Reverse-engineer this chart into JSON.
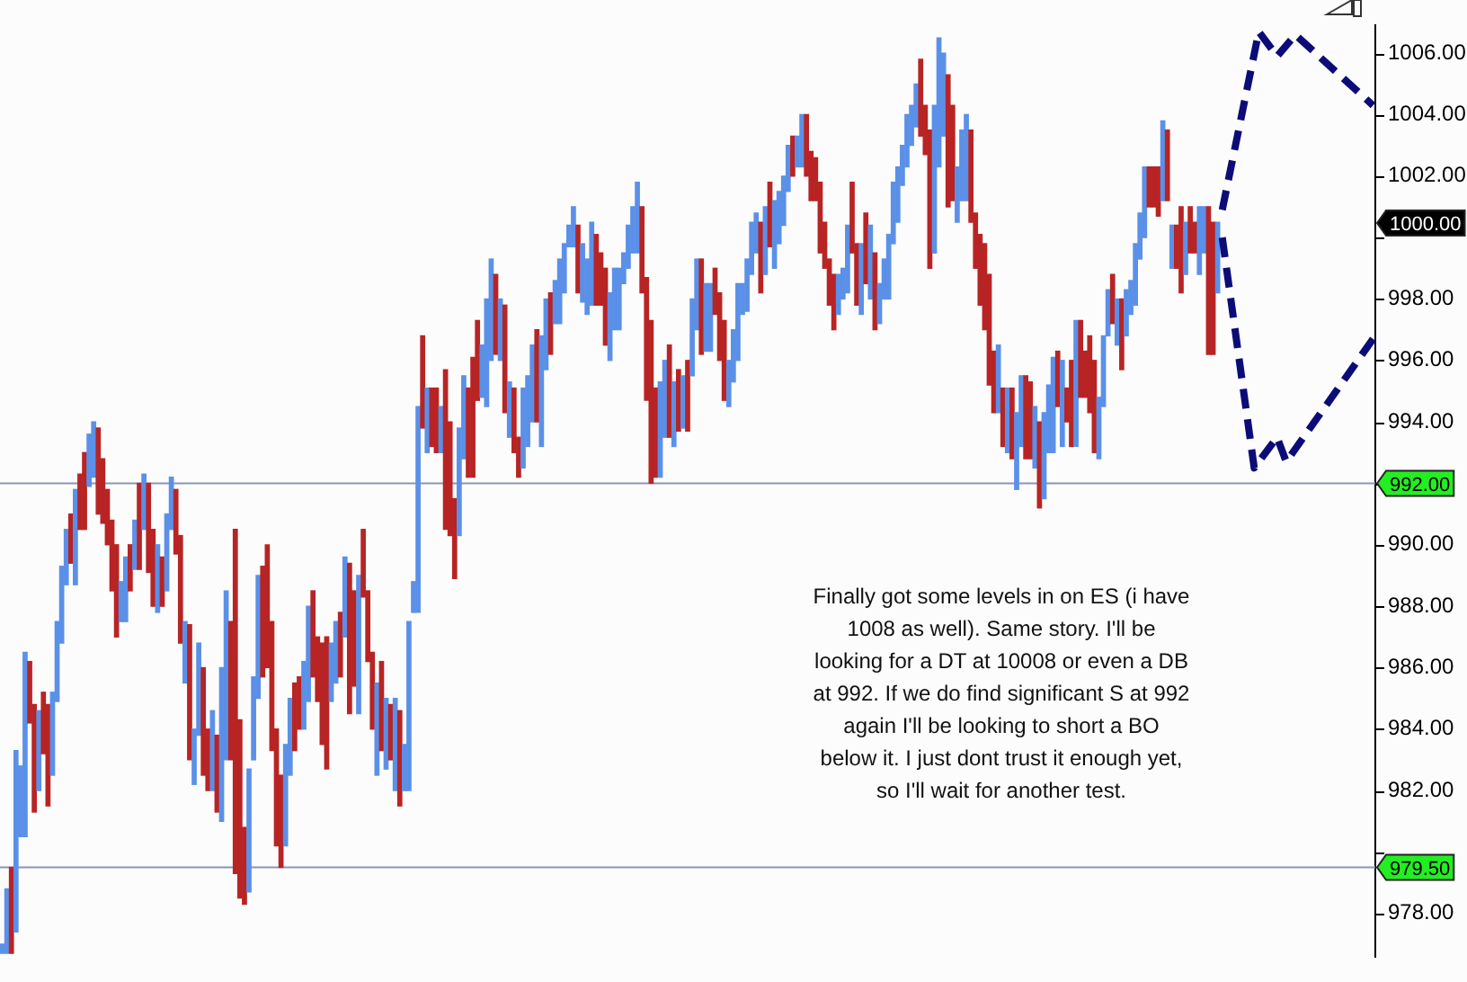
{
  "chart_data": {
    "type": "bar",
    "categories": [
      null,
      null,
      null,
      null,
      null,
      null,
      null,
      null,
      null,
      null,
      null,
      null,
      null,
      null,
      null,
      null,
      null,
      null,
      null,
      null,
      null,
      null,
      null,
      null,
      null,
      null,
      null,
      null,
      null,
      null,
      null,
      null,
      null,
      null,
      null,
      null,
      null,
      null,
      null,
      null,
      null,
      null,
      null,
      null,
      null,
      null,
      null,
      null,
      null,
      null,
      null,
      null,
      null,
      null,
      null,
      null,
      null,
      null,
      null,
      null,
      null,
      null,
      null,
      null,
      null,
      null,
      null,
      null,
      null,
      null,
      null,
      null,
      null,
      null,
      null,
      null,
      null,
      null,
      null,
      null,
      null,
      null,
      null,
      null,
      null,
      null,
      null,
      null,
      null,
      null,
      null,
      null,
      null,
      null,
      null,
      null,
      null,
      null,
      null,
      null,
      null,
      null,
      null,
      null,
      null,
      null,
      null,
      null,
      null,
      null,
      null,
      null,
      null,
      null,
      null,
      null,
      null,
      null,
      null,
      null,
      null,
      null,
      null,
      null,
      null,
      null,
      null,
      null,
      null,
      null,
      null,
      null,
      null,
      null,
      null,
      null,
      null,
      null,
      null,
      null,
      null,
      null,
      null,
      null,
      null,
      null,
      null,
      null,
      null,
      null,
      null,
      null,
      null,
      null,
      null,
      null,
      null,
      null,
      null,
      null,
      null,
      null,
      null,
      null,
      null,
      null,
      null,
      null,
      null,
      null,
      null,
      null,
      null,
      null,
      null,
      null,
      null,
      null,
      null,
      null,
      null,
      null,
      null,
      null,
      null,
      null,
      null,
      null,
      null,
      null,
      null,
      null,
      null,
      null,
      null,
      null,
      null,
      null,
      null,
      null,
      null,
      null,
      null,
      null,
      null,
      null,
      null,
      null,
      null,
      null,
      null,
      null,
      null,
      null,
      null,
      null,
      null,
      null,
      null,
      null,
      null,
      null,
      null,
      null,
      null,
      null,
      null,
      null,
      null,
      null,
      null,
      null,
      null,
      null,
      null,
      null,
      null,
      null,
      null,
      null,
      null,
      null,
      null,
      null,
      null,
      null,
      null,
      null,
      null,
      null,
      null,
      null,
      null,
      null,
      null,
      null,
      null,
      null,
      null,
      null,
      null,
      null,
      null,
      null,
      null,
      null,
      null,
      null,
      null,
      null,
      null,
      null,
      null,
      null,
      null,
      null,
      null,
      null,
      null,
      null,
      null,
      null,
      null,
      null,
      null,
      null,
      null,
      null,
      null,
      null,
      null,
      null,
      null,
      null,
      null,
      null,
      null,
      null,
      null,
      null,
      null
    ],
    "series": [
      {
        "values": [
          0.3,
          2.1,
          2.8,
          5.9,
          2.3,
          6,
          2,
          3.5,
          2.6,
          2,
          3.3,
          2.7,
          2.6,
          2.5,
          1.8,
          1.6,
          3.1,
          1.8,
          2.5,
          1.7,
          1.8,
          2.8,
          2.1,
          1.8,
          2.3,
          3,
          1.3,
          2.1,
          1.5,
          1.6,
          2.8,
          1.8,
          2.9,
          2.5,
          2.2,
          1.6,
          2.5,
          1.7,
          2.1,
          3.5,
          2,
          4.4,
          1.8,
          3,
          3.5,
          2,
          2.6,
          2.5,
          5,
          5.5,
          4.5,
          11.2,
          5.8,
          2.5,
          4,
          2.7,
          4,
          3.6,
          4,
          4.2,
          3.8,
          3,
          3.3,
          2.5,
          2.2,
          1.7,
          2.2,
          3.1,
          2.8,
          2.1,
          3.3,
          4.3,
          1.9,
          2,
          2.1,
          2.6,
          4.9,
          3.1,
          4.5,
          2.2,
          2.3,
          2.5,
          3,
          2.9,
          2.3,
          1.8,
          3,
          3.1,
          1.5,
          5.5,
          1,
          6.7,
          3,
          2.1,
          1.9,
          2.1,
          1.5,
          5.2,
          3.7,
          2.6,
          3.5,
          2.7,
          2.9,
          3.9,
          2.6,
          1.7,
          3.5,
          3.3,
          2.6,
          2,
          3.5,
          1.8,
          2.1,
          1.3,
          2.6,
          2.3,
          2.5,
          3,
          3.6,
          2.3,
          2,
          1.4,
          2.1,
          1.6,
          0.7,
          1.3,
          2.2,
          1.9,
          1.8,
          2.7,
          2.3,
          1.7,
          2.5,
          2.2,
          2,
          2,
          1,
          1.4,
          1.5,
          2.3,
          2.8,
          4,
          5.3,
          2.9,
          3.1,
          2.5,
          3,
          2.1,
          2,
          1.7,
          2.3,
          2.5,
          2.3,
          3.1,
          2.2,
          2.2,
          1.5,
          2.2,
          2.6,
          1.5,
          1.7,
          2.5,
          1,
          1.7,
          1.7,
          1.3,
          2.3,
          2.2,
          2.1,
          2.2,
          1.7,
          1.6,
          1.5,
          1.3,
          1,
          1.7,
          2,
          1.6,
          1.4,
          2.3,
          1.5,
          1.5,
          1.8,
          1.3,
          1,
          2.2,
          2.3,
          2,
          2.3,
          2.3,
          2.4,
          2.5,
          1.3,
          1.3,
          2.1,
          2,
          1.8,
          1.3,
          1.7,
          1.3,
          1.4,
          2.5,
          1.6,
          4.5,
          4.8,
          4.2,
          2.7,
          4.3,
          3.1,
          1.8,
          2.3,
          2.8,
          3,
          1.8,
          2.3,
          2.8,
          3.6,
          2,
          2.2,
          1.9,
          2.1,
          2.3,
          2.5,
          2.3,
          2.7,
          2.5,
          2,
          2.8,
          2.8,
          2.2,
          3.1,
          1.8,
          2.8,
          1.1,
          2.8,
          4.1,
          2.5,
          1.5,
          2.5,
          3,
          2,
          2.3,
          1.5,
          1.6,
          1.5,
          2.3,
          1.5,
          1.1,
          2,
          1.5,
          2.3,
          1.3,
          1.3,
          1.6,
          2.6,
          2.3,
          1.4,
          1.4,
          2.8,
          1.7,
          1.5,
          1,
          2.2,
          1.5,
          4.8,
          4.3,
          2.3,
          null,
          null,
          null,
          null,
          null,
          null,
          null,
          null,
          null,
          null,
          null,
          null,
          null,
          null,
          null,
          null,
          null,
          null,
          null,
          null,
          null,
          null,
          null,
          null,
          null,
          null,
          null,
          null,
          null,
          null,
          null,
          null,
          null,
          null
        ],
        "base": [
          976.7,
          976.7,
          976.7,
          977.4,
          980.5,
          980.5,
          984.2,
          981.3,
          982,
          983.2,
          981.5,
          982.5,
          984.9,
          986.8,
          988.7,
          989.4,
          988.7,
          990.5,
          990.5,
          991.9,
          992.2,
          991,
          990.7,
          990,
          988.5,
          987,
          987.5,
          987.5,
          988.5,
          989.2,
          989.2,
          990.5,
          989.1,
          988,
          987.8,
          988,
          988.5,
          990.5,
          989.7,
          986.8,
          985.5,
          983,
          982.2,
          983.8,
          982.5,
          982,
          982,
          981.3,
          981,
          983,
          983,
          979.3,
          978.5,
          978.3,
          978.7,
          983,
          985,
          985.7,
          986,
          983.3,
          980.2,
          979.5,
          980.2,
          982.5,
          983.3,
          984,
          984,
          984.9,
          985.7,
          984.9,
          983.5,
          982.7,
          984.9,
          985.5,
          985.7,
          987,
          984.5,
          985.4,
          984.5,
          988.3,
          986.2,
          984,
          982.5,
          983.3,
          982.7,
          983,
          982,
          981.5,
          982,
          982,
          987.8,
          987.8,
          993.8,
          993,
          993.2,
          993,
          993,
          990.5,
          990.3,
          988.9,
          990.3,
          992.8,
          992.2,
          992.2,
          994.7,
          994.8,
          994.5,
          996,
          996.2,
          996,
          994.3,
          993.5,
          993,
          992.2,
          992.5,
          993.2,
          994,
          994,
          993.2,
          995.7,
          996.2,
          997.2,
          997.2,
          998.2,
          999.7,
          999.7,
          998.2,
          997.9,
          997.5,
          997.8,
          997.8,
          997.8,
          996.5,
          996,
          997,
          997,
          998.5,
          999,
          999.5,
          999.5,
          998.2,
          994.7,
          992,
          992.2,
          992.2,
          993.5,
          993.5,
          993.2,
          993.7,
          993.8,
          993.7,
          995.5,
          997,
          996.2,
          996.3,
          996.3,
          997.5,
          996,
          994.7,
          994.5,
          995.3,
          996,
          997.5,
          997.6,
          998.8,
          999.5,
          998.2,
          998.8,
          999.7,
          999,
          999.8,
          1000.4,
          1001.5,
          1002,
          1002.3,
          1002.3,
          1002,
          1001.2,
          1001.2,
          999.5,
          999,
          997.8,
          997,
          997.5,
          998,
          998.2,
          999.5,
          997.8,
          997.5,
          998.5,
          998,
          997,
          997.2,
          998,
          998,
          999.8,
          1000.5,
          1001.7,
          1002.3,
          1003,
          1003.6,
          1003.3,
          1002.7,
          999,
          999.5,
          1002.3,
          1003.3,
          1001,
          1001.2,
          1000.5,
          1001.2,
          1001.2,
          1000.5,
          999,
          997.8,
          997,
          995.2,
          994.3,
          994.3,
          993.2,
          993,
          992.8,
          991.8,
          993.2,
          992.8,
          992.8,
          992.5,
          991.2,
          991.5,
          993,
          993,
          994.5,
          993.2,
          994,
          993.2,
          993.2,
          994.8,
          994.8,
          994.3,
          993,
          992.8,
          994.5,
          996.8,
          997.2,
          996.5,
          995.7,
          996.8,
          997.5,
          997.8,
          999.3,
          1000,
          1001,
          1001,
          1000.7,
          1001.2,
          1001.2,
          999,
          999,
          998.2,
          998.8,
          999.5,
          999.5,
          998.8,
          999.5,
          996.2,
          996.2,
          998.2,
          null,
          null,
          null,
          null,
          null,
          null,
          null,
          null,
          null,
          null,
          null,
          null,
          null,
          null,
          null,
          null,
          null,
          null,
          null,
          null,
          null,
          null,
          null,
          null,
          null,
          null,
          null,
          null,
          null,
          null,
          null,
          null,
          null,
          null
        ],
        "colors": [
          "#5b90e8",
          "#5b90e8",
          "#b82424",
          "#5b90e8",
          "#5b90e8",
          "#5b90e8",
          "#b82424",
          "#b82424",
          "#5b90e8",
          "#b82424",
          "#b82424",
          "#5b90e8",
          "#5b90e8",
          "#5b90e8",
          "#5b90e8",
          "#b82424",
          "#5b90e8",
          "#b82424",
          "#b82424",
          "#5b90e8",
          "#5b90e8",
          "#b82424",
          "#b82424",
          "#b82424",
          "#b82424",
          "#b82424",
          "#5b90e8",
          "#5b90e8",
          "#b82424",
          "#5b90e8",
          "#b82424",
          "#5b90e8",
          "#b82424",
          "#b82424",
          "#5b90e8",
          "#b82424",
          "#5b90e8",
          "#5b90e8",
          "#b82424",
          "#b82424",
          "#5b90e8",
          "#b82424",
          "#5b90e8",
          "#5b90e8",
          "#b82424",
          "#b82424",
          "#5b90e8",
          "#b82424",
          "#5b90e8",
          "#5b90e8",
          "#b82424",
          "#b82424",
          "#b82424",
          "#b82424",
          "#5b90e8",
          "#5b90e8",
          "#5b90e8",
          "#b82424",
          "#b82424",
          "#b82424",
          "#b82424",
          "#b82424",
          "#5b90e8",
          "#5b90e8",
          "#b82424",
          "#b82424",
          "#5b90e8",
          "#5b90e8",
          "#b82424",
          "#b82424",
          "#b82424",
          "#b82424",
          "#5b90e8",
          "#5b90e8",
          "#b82424",
          "#5b90e8",
          "#b82424",
          "#b82424",
          "#5b90e8",
          "#b82424",
          "#b82424",
          "#b82424",
          "#5b90e8",
          "#b82424",
          "#5b90e8",
          "#b82424",
          "#5b90e8",
          "#b82424",
          "#5b90e8",
          "#5b90e8",
          "#5b90e8",
          "#5b90e8",
          "#b82424",
          "#5b90e8",
          "#b82424",
          "#b82424",
          "#5b90e8",
          "#b82424",
          "#b82424",
          "#b82424",
          "#5b90e8",
          "#5b90e8",
          "#b82424",
          "#b82424",
          "#b82424",
          "#5b90e8",
          "#5b90e8",
          "#5b90e8",
          "#b82424",
          "#5b90e8",
          "#b82424",
          "#5b90e8",
          "#b82424",
          "#b82424",
          "#5b90e8",
          "#5b90e8",
          "#5b90e8",
          "#b82424",
          "#5b90e8",
          "#5b90e8",
          "#b82424",
          "#5b90e8",
          "#5b90e8",
          "#5b90e8",
          "#5b90e8",
          "#5b90e8",
          "#b82424",
          "#5b90e8",
          "#5b90e8",
          "#5b90e8",
          "#b82424",
          "#b82424",
          "#b82424",
          "#5b90e8",
          "#5b90e8",
          "#5b90e8",
          "#5b90e8",
          "#5b90e8",
          "#5b90e8",
          "#5b90e8",
          "#b82424",
          "#b82424",
          "#b82424",
          "#b82424",
          "#5b90e8",
          "#5b90e8",
          "#b82424",
          "#5b90e8",
          "#b82424",
          "#5b90e8",
          "#b82424",
          "#5b90e8",
          "#5b90e8",
          "#b82424",
          "#5b90e8",
          "#5b90e8",
          "#b82424",
          "#b82424",
          "#b82424",
          "#5b90e8",
          "#5b90e8",
          "#5b90e8",
          "#5b90e8",
          "#5b90e8",
          "#5b90e8",
          "#5b90e8",
          "#b82424",
          "#5b90e8",
          "#b82424",
          "#5b90e8",
          "#5b90e8",
          "#5b90e8",
          "#5b90e8",
          "#b82424",
          "#5b90e8",
          "#5b90e8",
          "#b82424",
          "#b82424",
          "#b82424",
          "#b82424",
          "#b82424",
          "#b82424",
          "#b82424",
          "#5b90e8",
          "#5b90e8",
          "#5b90e8",
          "#b82424",
          "#b82424",
          "#5b90e8",
          "#b82424",
          "#5b90e8",
          "#b82424",
          "#5b90e8",
          "#5b90e8",
          "#5b90e8",
          "#5b90e8",
          "#5b90e8",
          "#5b90e8",
          "#5b90e8",
          "#5b90e8",
          "#5b90e8",
          "#b82424",
          "#b82424",
          "#b82424",
          "#5b90e8",
          "#5b90e8",
          "#5b90e8",
          "#b82424",
          "#b82424",
          "#5b90e8",
          "#5b90e8",
          "#5b90e8",
          "#b82424",
          "#b82424",
          "#b82424",
          "#b82424",
          "#b82424",
          "#b82424",
          "#5b90e8",
          "#b82424",
          "#5b90e8",
          "#b82424",
          "#5b90e8",
          "#5b90e8",
          "#b82424",
          "#b82424",
          "#5b90e8",
          "#b82424",
          "#5b90e8",
          "#5b90e8",
          "#5b90e8",
          "#b82424",
          "#5b90e8",
          "#b82424",
          "#b82424",
          "#5b90e8",
          "#b82424",
          "#b82424",
          "#b82424",
          "#b82424",
          "#5b90e8",
          "#5b90e8",
          "#5b90e8",
          "#b82424",
          "#5b90e8",
          "#b82424",
          "#5b90e8",
          "#5b90e8",
          "#5b90e8",
          "#5b90e8",
          "#5b90e8",
          "#b82424",
          "#b82424",
          "#b82424",
          "#5b90e8",
          "#b82424",
          "#5b90e8",
          "#b82424",
          "#b82424",
          "#5b90e8",
          "#b82424",
          "#b82424",
          "#5b90e8",
          "#5b90e8",
          "#b82424",
          "#b82424",
          "#5b90e8",
          null,
          null,
          null,
          null,
          null,
          null,
          null,
          null,
          null,
          null,
          null,
          null,
          null,
          null,
          null,
          null,
          null,
          null,
          null,
          null,
          null,
          null,
          null,
          null,
          null,
          null,
          null,
          null,
          null,
          null,
          null,
          null,
          null,
          null
        ]
      },
      {
        "type": "line",
        "color": "#0c0c78",
        "line_style": "dashed",
        "values": [
          null,
          null,
          null,
          null,
          null,
          null,
          null,
          null,
          null,
          null,
          null,
          null,
          null,
          null,
          null,
          null,
          null,
          null,
          null,
          null,
          null,
          null,
          null,
          null,
          null,
          null,
          null,
          null,
          null,
          null,
          null,
          null,
          null,
          null,
          null,
          null,
          null,
          null,
          null,
          null,
          null,
          null,
          null,
          null,
          null,
          null,
          null,
          null,
          null,
          null,
          null,
          null,
          null,
          null,
          null,
          null,
          null,
          null,
          null,
          null,
          null,
          null,
          null,
          null,
          null,
          null,
          null,
          null,
          null,
          null,
          null,
          null,
          null,
          null,
          null,
          null,
          null,
          null,
          null,
          null,
          null,
          null,
          null,
          null,
          null,
          null,
          null,
          null,
          null,
          null,
          null,
          null,
          null,
          null,
          null,
          null,
          null,
          null,
          null,
          null,
          null,
          null,
          null,
          null,
          null,
          null,
          null,
          null,
          null,
          null,
          null,
          null,
          null,
          null,
          null,
          null,
          null,
          null,
          null,
          null,
          null,
          null,
          null,
          null,
          null,
          null,
          null,
          null,
          null,
          null,
          null,
          null,
          null,
          null,
          null,
          null,
          null,
          null,
          null,
          null,
          null,
          null,
          null,
          null,
          null,
          null,
          null,
          null,
          null,
          null,
          null,
          null,
          null,
          null,
          null,
          null,
          null,
          null,
          null,
          null,
          null,
          null,
          null,
          null,
          null,
          null,
          null,
          null,
          null,
          null,
          null,
          null,
          null,
          null,
          null,
          null,
          null,
          null,
          null,
          null,
          null,
          null,
          null,
          null,
          null,
          null,
          null,
          null,
          null,
          null,
          null,
          null,
          null,
          null,
          null,
          null,
          null,
          null,
          null,
          null,
          null,
          null,
          null,
          null,
          null,
          null,
          null,
          null,
          null,
          null,
          null,
          null,
          null,
          null,
          null,
          null,
          null,
          null,
          null,
          null,
          null,
          null,
          null,
          null,
          null,
          null,
          null,
          null,
          null,
          null,
          null,
          null,
          null,
          null,
          null,
          null,
          null,
          null,
          null,
          null,
          null,
          null,
          null,
          null,
          null,
          null,
          null,
          null,
          null,
          null,
          null,
          null,
          null,
          null,
          null,
          null,
          null,
          null,
          null,
          null,
          null,
          null,
          null,
          null,
          null,
          null,
          null,
          1000.9,
          null,
          null,
          null,
          null,
          null,
          null,
          null,
          1006.7,
          null,
          null,
          null,
          1005.9,
          null,
          null,
          null,
          1006.6,
          null,
          null,
          null,
          null,
          null,
          null,
          null,
          null,
          null,
          null,
          null,
          null,
          null,
          null,
          null,
          null,
          1004.3
        ]
      },
      {
        "type": "line",
        "color": "#0c0c78",
        "line_style": "dashed",
        "values": [
          null,
          null,
          null,
          null,
          null,
          null,
          null,
          null,
          null,
          null,
          null,
          null,
          null,
          null,
          null,
          null,
          null,
          null,
          null,
          null,
          null,
          null,
          null,
          null,
          null,
          null,
          null,
          null,
          null,
          null,
          null,
          null,
          null,
          null,
          null,
          null,
          null,
          null,
          null,
          null,
          null,
          null,
          null,
          null,
          null,
          null,
          null,
          null,
          null,
          null,
          null,
          null,
          null,
          null,
          null,
          null,
          null,
          null,
          null,
          null,
          null,
          null,
          null,
          null,
          null,
          null,
          null,
          null,
          null,
          null,
          null,
          null,
          null,
          null,
          null,
          null,
          null,
          null,
          null,
          null,
          null,
          null,
          null,
          null,
          null,
          null,
          null,
          null,
          null,
          null,
          null,
          null,
          null,
          null,
          null,
          null,
          null,
          null,
          null,
          null,
          null,
          null,
          null,
          null,
          null,
          null,
          null,
          null,
          null,
          null,
          null,
          null,
          null,
          null,
          null,
          null,
          null,
          null,
          null,
          null,
          null,
          null,
          null,
          null,
          null,
          null,
          null,
          null,
          null,
          null,
          null,
          null,
          null,
          null,
          null,
          null,
          null,
          null,
          null,
          null,
          null,
          null,
          null,
          null,
          null,
          null,
          null,
          null,
          null,
          null,
          null,
          null,
          null,
          null,
          null,
          null,
          null,
          null,
          null,
          null,
          null,
          null,
          null,
          null,
          null,
          null,
          null,
          null,
          null,
          null,
          null,
          null,
          null,
          null,
          null,
          null,
          null,
          null,
          null,
          null,
          null,
          null,
          null,
          null,
          null,
          null,
          null,
          null,
          null,
          null,
          null,
          null,
          null,
          null,
          null,
          null,
          null,
          null,
          null,
          null,
          null,
          null,
          null,
          null,
          null,
          null,
          null,
          null,
          null,
          null,
          null,
          null,
          null,
          null,
          null,
          null,
          null,
          null,
          null,
          null,
          null,
          null,
          null,
          null,
          null,
          null,
          null,
          null,
          null,
          null,
          null,
          null,
          null,
          null,
          null,
          null,
          null,
          null,
          null,
          null,
          null,
          null,
          null,
          null,
          null,
          null,
          null,
          null,
          null,
          null,
          null,
          null,
          null,
          null,
          null,
          null,
          null,
          null,
          null,
          null,
          null,
          null,
          null,
          null,
          null,
          null,
          null,
          1000,
          null,
          null,
          null,
          null,
          null,
          null,
          992.5,
          null,
          null,
          null,
          null,
          993.5,
          null,
          992.7,
          null,
          null,
          null,
          null,
          null,
          null,
          null,
          null,
          null,
          null,
          null,
          null,
          null,
          null,
          null,
          null,
          null,
          null,
          996.7
        ]
      }
    ],
    "ylim": [
      976.6,
      1006.9
    ],
    "yticks": [
      {
        "value": 978,
        "label": "978.00"
      },
      {
        "value": 980,
        "label": null
      },
      {
        "value": 982,
        "label": "982.00"
      },
      {
        "value": 984,
        "label": "984.00"
      },
      {
        "value": 986,
        "label": "986.00"
      },
      {
        "value": 988,
        "label": "988.00"
      },
      {
        "value": 990,
        "label": "990.00"
      },
      {
        "value": 992,
        "label": null
      },
      {
        "value": 994,
        "label": "994.00"
      },
      {
        "value": 996,
        "label": "996.00"
      },
      {
        "value": 998,
        "label": "998.00"
      },
      {
        "value": 1000,
        "label": null
      },
      {
        "value": 1002,
        "label": "1002.00"
      },
      {
        "value": 1004,
        "label": "1004.00"
      },
      {
        "value": 1006,
        "label": "1006.00"
      }
    ],
    "ref_lines": [
      {
        "axis": "y",
        "value": 992,
        "label": "992.00",
        "color": "#8a94b8"
      },
      {
        "axis": "y",
        "value": 979.5,
        "label": "979.50",
        "color": "#8a94b8"
      }
    ],
    "annotations": [
      "1000.00",
      "Finally got some levels in on ES (i have\n1008 as well). Same story. I'll be\nlooking for a DT at 10008 or even a DB\nat 992. If we do find significant S at 992\nagain I'll be looking to short a BO\nbelow it. I just dont trust it enough yet,\nso I'll wait for another test."
    ],
    "grid": false,
    "legend": false
  }
}
